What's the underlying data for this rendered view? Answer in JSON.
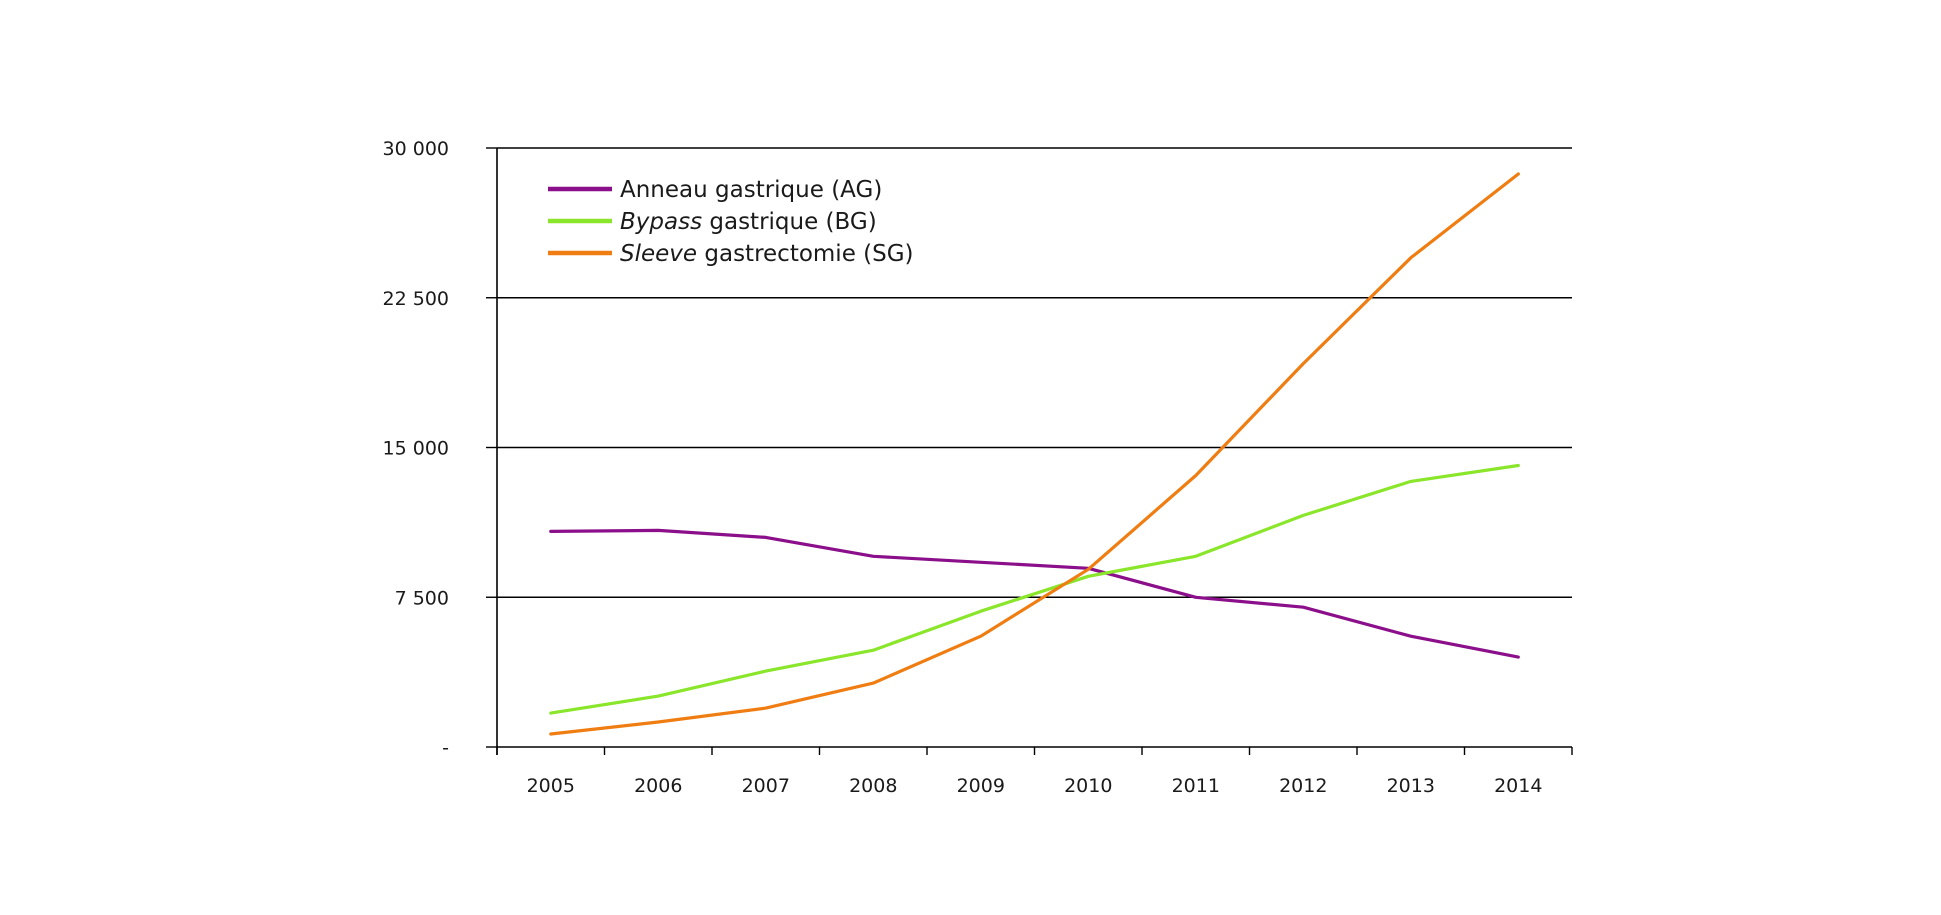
{
  "chart_data": {
    "type": "line",
    "title": "",
    "xlabel": "",
    "ylabel": "",
    "x": [
      "2005",
      "2006",
      "2007",
      "2008",
      "2009",
      "2010",
      "2011",
      "2012",
      "2013",
      "2014"
    ],
    "ylim": [
      0,
      30000
    ],
    "yticks": [
      0,
      7500,
      15000,
      22500,
      30000
    ],
    "ytick_labels": [
      "-",
      "7 500",
      "15 000",
      "22 500",
      "30 000"
    ],
    "grid": "horizontal",
    "legend_position": "top-left",
    "series": [
      {
        "name": "Anneau gastrique (AG)",
        "legend_italic": "",
        "legend_rest": "Anneau gastrique (AG)",
        "color": "#8b0f8b",
        "values": [
          10800,
          10850,
          10500,
          9550,
          9250,
          8950,
          7500,
          7000,
          5550,
          4500
        ]
      },
      {
        "name": "Bypass gastrique (BG)",
        "legend_italic": "Bypass",
        "legend_rest": " gastrique (BG)",
        "color": "#8ae62a",
        "values": [
          1700,
          2550,
          3800,
          4850,
          6800,
          8550,
          9550,
          11600,
          13300,
          14100
        ]
      },
      {
        "name": "Sleeve gastrectomie (SG)",
        "legend_italic": "Sleeve",
        "legend_rest": " gastrectomie (SG)",
        "color": "#f07d12",
        "values": [
          650,
          1250,
          1950,
          3200,
          5550,
          8900,
          13600,
          19200,
          24500,
          28700
        ]
      }
    ]
  }
}
